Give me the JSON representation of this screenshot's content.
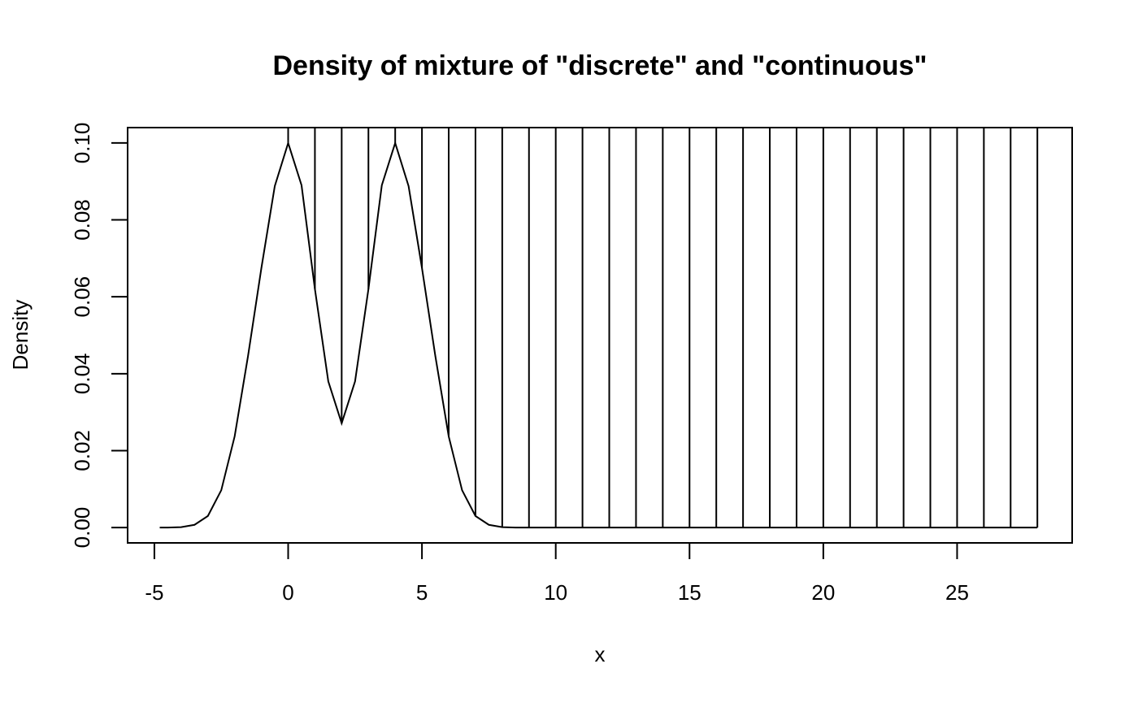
{
  "chart_data": {
    "type": "line",
    "title": "Density of mixture of \"discrete\" and \"continuous\"",
    "xlabel": "x",
    "ylabel": "Density",
    "xlim": [
      -6,
      29.3
    ],
    "ylim": [
      -0.004,
      0.104
    ],
    "x_ticks": [
      -5,
      0,
      5,
      10,
      15,
      20,
      25
    ],
    "x_tick_labels": [
      "-5",
      "0",
      "5",
      "10",
      "15",
      "20",
      "25"
    ],
    "y_ticks": [
      0.0,
      0.02,
      0.04,
      0.06,
      0.08,
      0.1
    ],
    "y_tick_labels": [
      "0.00",
      "0.02",
      "0.04",
      "0.06",
      "0.08",
      "0.10"
    ],
    "grid": false,
    "legend": "none",
    "series": [
      {
        "kind": "continuous",
        "x": [
          -4.8,
          -4.5,
          -4.0,
          -3.5,
          -3.0,
          -2.5,
          -2.0,
          -1.5,
          -1.0,
          -0.5,
          0.0,
          0.5,
          1.0,
          1.5,
          2.0,
          2.5,
          3.0,
          3.5,
          4.0,
          4.5,
          5.0,
          5.5,
          6.0,
          6.5,
          7.0,
          7.5,
          8.0,
          8.5,
          9.0,
          10.0,
          28.0
        ],
        "y": [
          0.0,
          0.0,
          0.0001,
          0.0007,
          0.003,
          0.0097,
          0.0237,
          0.0446,
          0.0675,
          0.0888,
          0.1,
          0.089,
          0.062,
          0.038,
          0.0271,
          0.038,
          0.062,
          0.089,
          0.1,
          0.0888,
          0.0675,
          0.0446,
          0.0237,
          0.0097,
          0.003,
          0.0007,
          0.0001,
          0.0,
          0.0,
          0.0,
          0.0
        ]
      },
      {
        "kind": "discrete",
        "x": [
          0,
          1,
          2,
          3,
          4,
          5,
          6,
          7,
          8,
          9,
          10,
          11,
          12,
          13,
          14,
          15,
          16,
          17,
          18,
          19,
          20,
          21,
          22,
          23,
          24,
          25,
          26,
          27,
          28
        ],
        "y": [
          0.104,
          0.104,
          0.104,
          0.104,
          0.104,
          0.104,
          0.104,
          0.104,
          0.104,
          0.104,
          0.104,
          0.104,
          0.104,
          0.104,
          0.104,
          0.104,
          0.104,
          0.104,
          0.104,
          0.104,
          0.104,
          0.104,
          0.104,
          0.104,
          0.104,
          0.104,
          0.104,
          0.104,
          0.104
        ]
      }
    ]
  }
}
